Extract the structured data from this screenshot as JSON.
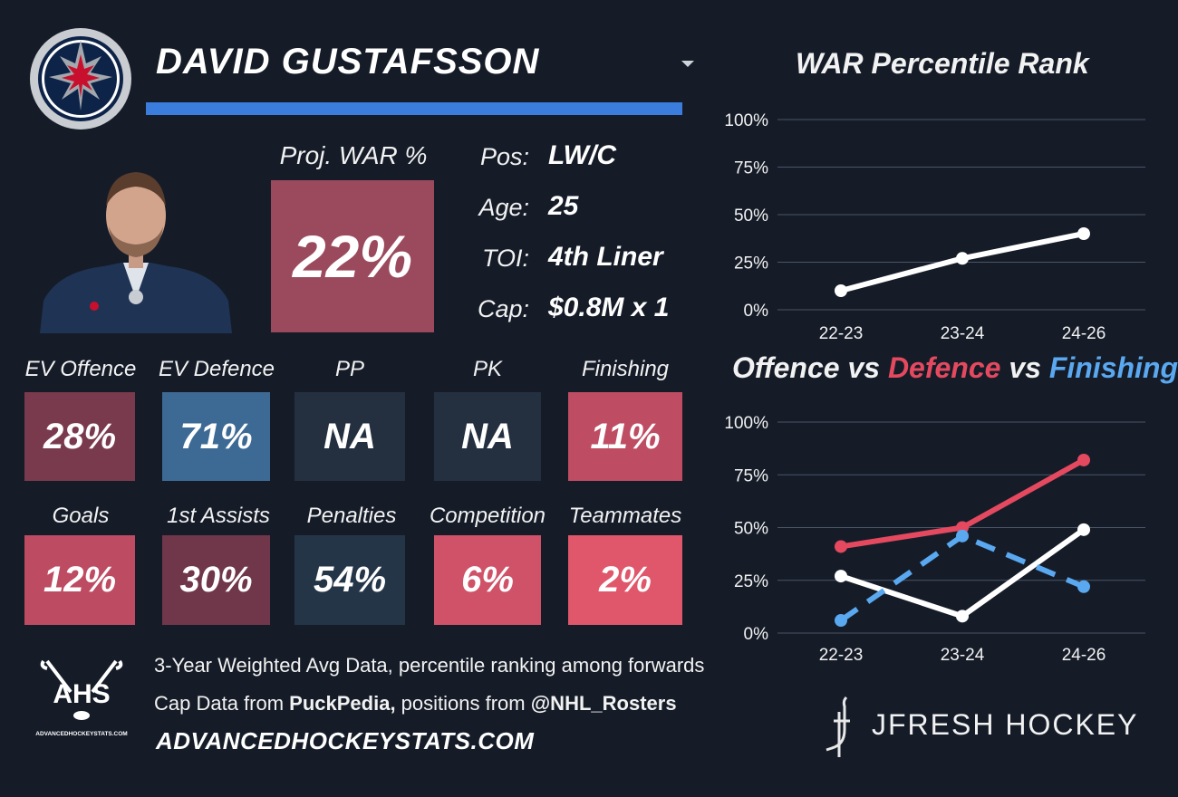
{
  "player": {
    "name": "DAVID GUSTAFSSON",
    "proj_war_label": "Proj. WAR %",
    "proj_war_value": "22%",
    "proj_war_color": "#9b4a5d"
  },
  "info": [
    {
      "label": "Pos:",
      "value": "LW/C"
    },
    {
      "label": "Age:",
      "value": "25"
    },
    {
      "label": "TOI:",
      "value": "4th Liner"
    },
    {
      "label": "Cap:",
      "value": "$0.8M x 1"
    }
  ],
  "tiles_row1": [
    {
      "label": "EV Offence",
      "value": "28%",
      "color": "#7a3a4d"
    },
    {
      "label": "EV Defence",
      "value": "71%",
      "color": "#3d6a94"
    },
    {
      "label": "PP",
      "value": "NA",
      "color": "#243040"
    },
    {
      "label": "PK",
      "value": "NA",
      "color": "#243040"
    },
    {
      "label": "Finishing",
      "value": "11%",
      "color": "#be4c62"
    }
  ],
  "tiles_row2": [
    {
      "label": "Goals",
      "value": "12%",
      "color": "#bd4b62"
    },
    {
      "label": "1st Assists",
      "value": "30%",
      "color": "#703649"
    },
    {
      "label": "Penalties",
      "value": "54%",
      "color": "#243548"
    },
    {
      "label": "Competition",
      "value": "6%",
      "color": "#cf5268"
    },
    {
      "label": "Teammates",
      "value": "2%",
      "color": "#e0566b"
    }
  ],
  "footer": {
    "logo_text": "AHS",
    "logo_subtext": "ADVANCEDHOCKEYSTATS.COM",
    "line1": "3-Year Weighted Avg Data, percentile ranking among forwards",
    "line2_prefix": "Cap Data from ",
    "line2_source1": "PuckPedia,",
    "line2_middle": " positions from ",
    "line2_source2": "@NHL_Rosters",
    "site": "ADVANCEDHOCKEYSTATS.COM",
    "brand": "JFRESH HOCKEY"
  },
  "colors": {
    "background": "#151c28",
    "accent_blue": "#3b7ddd",
    "defence_red": "#e5495f",
    "finishing_blue": "#5aa8f0",
    "offence_white": "#ffffff"
  },
  "chart_data": [
    {
      "type": "line",
      "title": "WAR Percentile Rank",
      "categories": [
        "22-23",
        "23-24",
        "24-26"
      ],
      "yticks": [
        "100%",
        "75%",
        "50%",
        "25%",
        "0%"
      ],
      "ylim": [
        0,
        100
      ],
      "grid": true,
      "series": [
        {
          "values": [
            10,
            27,
            40
          ],
          "color": "#ffffff",
          "style": "solid"
        }
      ]
    },
    {
      "type": "line",
      "title_parts": [
        "Offence",
        " vs ",
        "Defence",
        " vs ",
        "Finishing"
      ],
      "categories": [
        "22-23",
        "23-24",
        "24-26"
      ],
      "yticks": [
        "100%",
        "75%",
        "50%",
        "25%",
        "0%"
      ],
      "ylim": [
        0,
        100
      ],
      "grid": true,
      "series": [
        {
          "name": "Offence",
          "values": [
            27,
            8,
            49
          ],
          "color": "#ffffff",
          "style": "solid"
        },
        {
          "name": "Defence",
          "values": [
            41,
            50,
            82
          ],
          "color": "#e5495f",
          "style": "solid"
        },
        {
          "name": "Finishing",
          "values": [
            6,
            46,
            22
          ],
          "color": "#5aa8f0",
          "style": "dashed"
        }
      ]
    }
  ]
}
